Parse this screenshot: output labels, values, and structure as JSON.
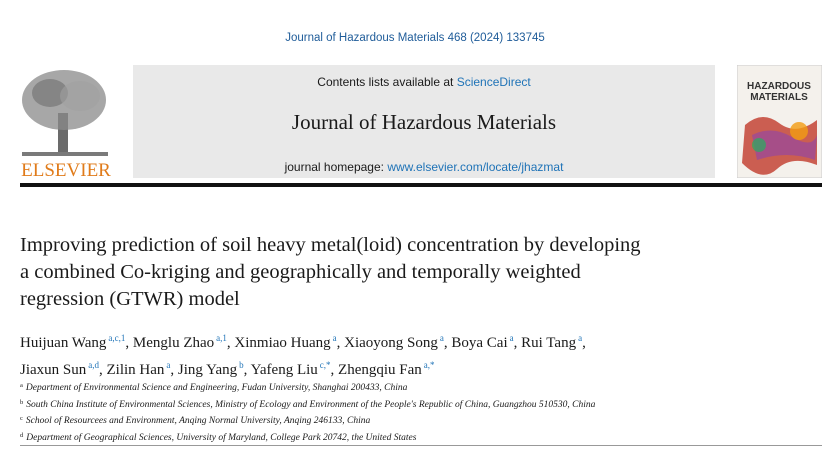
{
  "header": {
    "citation": "Journal of Hazardous Materials 468 (2024) 133745",
    "contents_prefix": "Contents lists available at ",
    "contents_link": "ScienceDirect",
    "journal_name": "Journal of Hazardous Materials",
    "homepage_prefix": "journal homepage: ",
    "homepage_link": "www.elsevier.com/locate/jhazmat",
    "publisher": "ELSEVIER",
    "cover_lines": [
      "HAZARDOUS",
      "MATERIALS"
    ]
  },
  "article": {
    "title_lines": [
      "Improving prediction of soil heavy metal(loid) concentration by developing",
      "a combined Co-kriging and geographically and temporally weighted",
      "regression (GTWR) model"
    ],
    "author_separator": ",",
    "author_lines": [
      [
        {
          "name": "Huijuan Wang",
          "sup": "a,c,1"
        },
        {
          "name": "Menglu Zhao",
          "sup": "a,1"
        },
        {
          "name": "Xinmiao Huang",
          "sup": "a"
        },
        {
          "name": "Xiaoyong Song",
          "sup": "a"
        },
        {
          "name": "Boya Cai",
          "sup": "a"
        },
        {
          "name": "Rui Tang",
          "sup": "a"
        }
      ],
      [
        {
          "name": "Jiaxun Sun",
          "sup": "a,d"
        },
        {
          "name": "Zilin Han",
          "sup": "a"
        },
        {
          "name": "Jing Yang",
          "sup": "b"
        },
        {
          "name": "Yafeng Liu",
          "sup": "c,*"
        },
        {
          "name": "Zhengqiu Fan",
          "sup": "a,*"
        }
      ]
    ],
    "affiliations": [
      {
        "key": "a",
        "text": "Department of Environmental Science and Engineering, Fudan University, Shanghai 200433, China"
      },
      {
        "key": "b",
        "text": "South China Institute of Environmental Sciences, Ministry of Ecology and Environment of the People's Republic of China, Guangzhou 510530, China"
      },
      {
        "key": "c",
        "text": "School of Resourcees and Environment, Anqing Normal University, Anqing 246133, China"
      },
      {
        "key": "d",
        "text": "Department of Geographical Sciences, University of Maryland, College Park 20742, the United States"
      }
    ]
  }
}
